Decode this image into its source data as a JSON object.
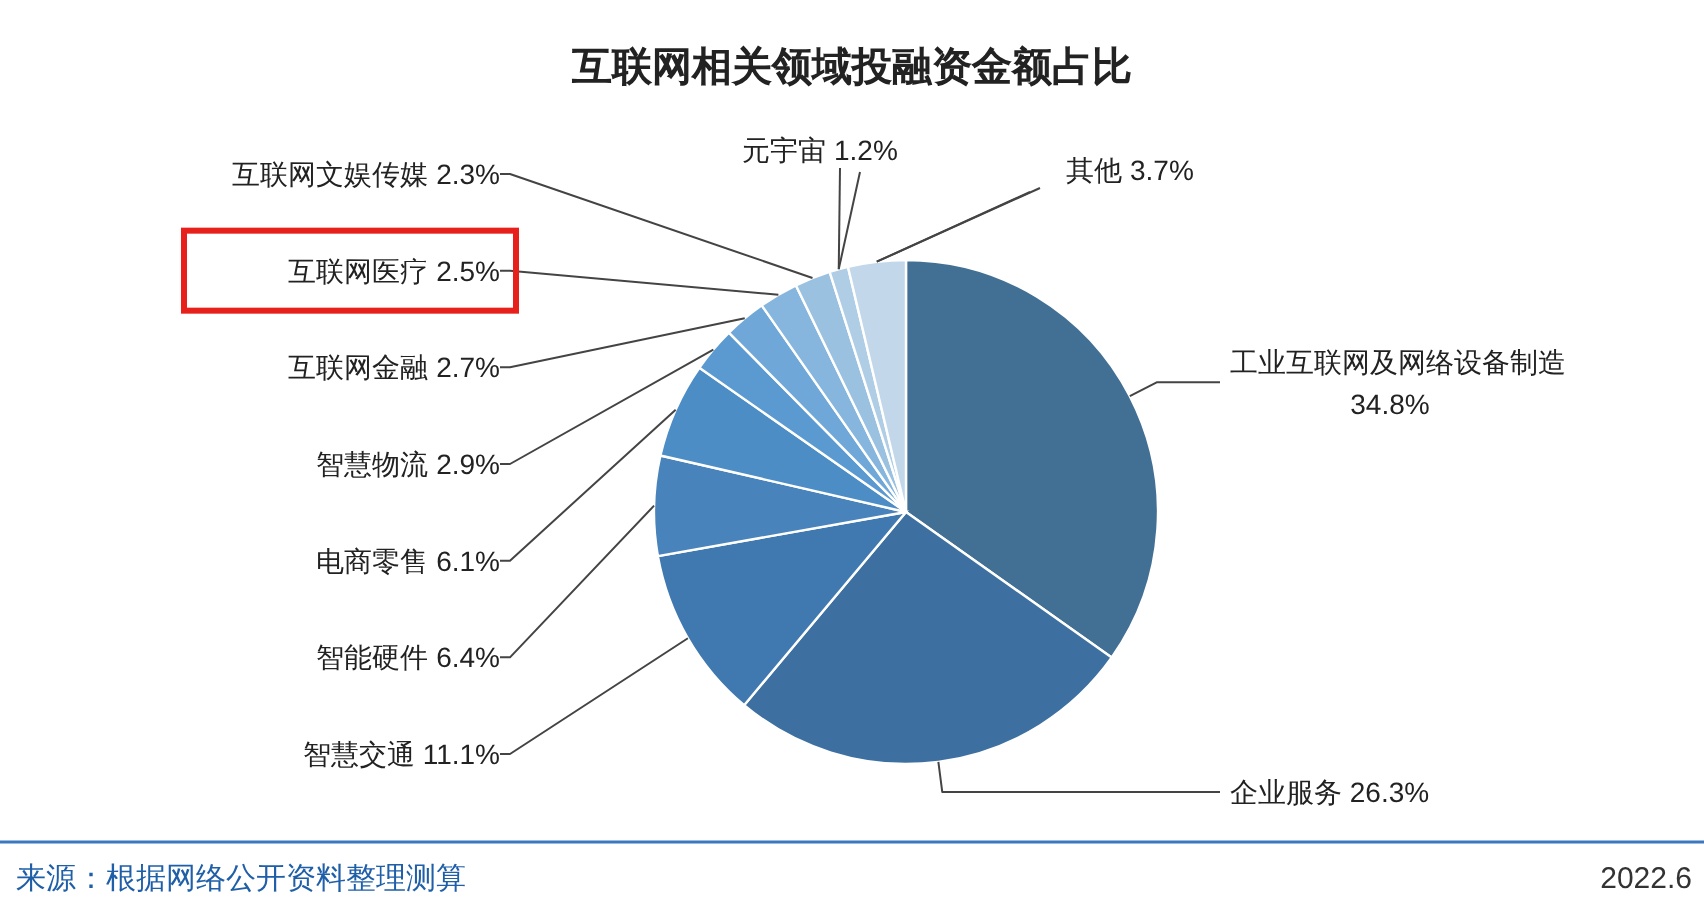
{
  "chart_data": {
    "type": "pie",
    "title": "互联网相关领域投融资金额占比",
    "categories": [
      "工业互联网及网络设备制造",
      "企业服务",
      "智慧交通",
      "智能硬件",
      "电商零售",
      "智慧物流",
      "互联网金融",
      "互联网医疗",
      "互联网文娱传媒",
      "元宇宙",
      "其他"
    ],
    "values": [
      34.8,
      26.3,
      11.1,
      6.4,
      6.1,
      2.9,
      2.7,
      2.5,
      2.3,
      1.2,
      3.7
    ],
    "value_labels": [
      "34.8%",
      "26.3%",
      "11.1%",
      "6.4%",
      "6.1%",
      "2.9%",
      "2.7%",
      "2.5%",
      "2.3%",
      "1.2%",
      "3.7%"
    ],
    "colors": [
      "#426f94",
      "#3d70a0",
      "#4079b0",
      "#4883bb",
      "#4c8dc6",
      "#5a9ad0",
      "#6fa8d8",
      "#86b5dd",
      "#9bc1e1",
      "#b0cde6",
      "#c3d7ea"
    ],
    "annotations": [
      "来源：根据网络公开资料整理测算",
      "2022.6"
    ]
  }
}
